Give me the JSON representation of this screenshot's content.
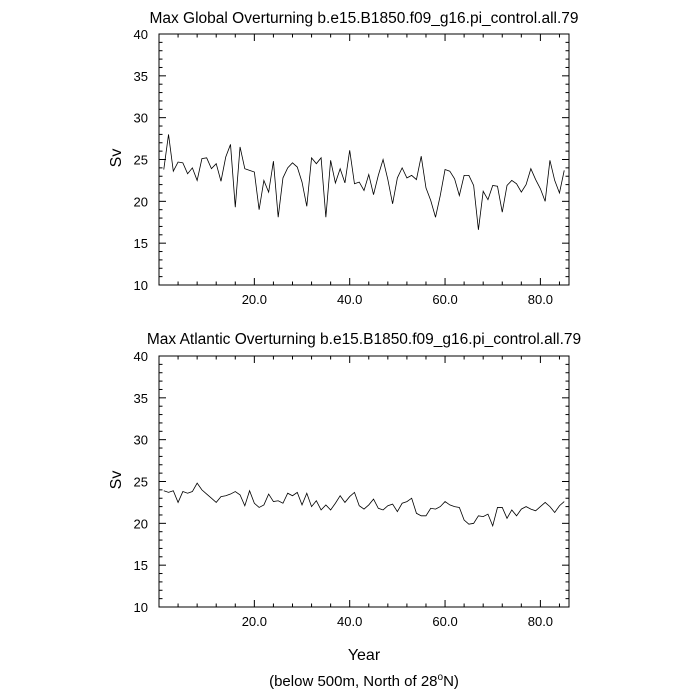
{
  "chart_data": [
    {
      "type": "line",
      "title": "Max Global Overturning b.e15.B1850.f09_g16.pi_control.all.79",
      "xlabel": "",
      "ylabel": "Sv",
      "xlim": [
        0,
        86
      ],
      "ylim": [
        10,
        40
      ],
      "xticks": [
        20,
        40,
        60,
        80
      ],
      "xtick_labels": [
        "20.0",
        "40.0",
        "60.0",
        "80.0"
      ],
      "yticks": [
        10,
        15,
        20,
        25,
        30,
        35,
        40
      ],
      "ytick_labels": [
        "10",
        "15",
        "20",
        "25",
        "30",
        "35",
        "40"
      ],
      "grid": false,
      "x": [
        1,
        2,
        3,
        4,
        5,
        6,
        7,
        8,
        9,
        10,
        11,
        12,
        13,
        14,
        15,
        16,
        17,
        18,
        19,
        20,
        21,
        22,
        23,
        24,
        25,
        26,
        27,
        28,
        29,
        30,
        31,
        32,
        33,
        34,
        35,
        36,
        37,
        38,
        39,
        40,
        41,
        42,
        43,
        44,
        45,
        46,
        47,
        48,
        49,
        50,
        51,
        52,
        53,
        54,
        55,
        56,
        57,
        58,
        59,
        60,
        61,
        62,
        63,
        64,
        65,
        66,
        67,
        68,
        69,
        70,
        71,
        72,
        73,
        74,
        75,
        76,
        77,
        78,
        79,
        80,
        81,
        82,
        83,
        84,
        85
      ],
      "y": [
        23.8,
        28.0,
        23.6,
        24.7,
        24.6,
        23.3,
        24.0,
        22.5,
        25.1,
        25.2,
        23.9,
        24.5,
        22.4,
        25.3,
        26.8,
        19.3,
        26.5,
        23.9,
        23.7,
        23.5,
        19.0,
        22.5,
        21.1,
        24.8,
        18.1,
        22.8,
        24.0,
        24.6,
        24.1,
        22.3,
        19.4,
        25.2,
        24.5,
        25.2,
        18.1,
        24.9,
        22.2,
        23.9,
        22.2,
        26.1,
        22.1,
        22.3,
        21.3,
        23.2,
        20.8,
        23.1,
        25.0,
        22.6,
        19.7,
        22.8,
        24.0,
        22.8,
        23.1,
        22.6,
        25.4,
        21.6,
        20.1,
        18.1,
        20.7,
        23.8,
        23.6,
        22.7,
        20.7,
        23.1,
        23.1,
        21.9,
        16.6,
        21.2,
        20.2,
        21.9,
        21.8,
        18.7,
        21.9,
        22.5,
        22.1,
        21.1,
        22.0,
        23.9,
        22.6,
        21.5,
        20.0,
        24.9,
        22.5,
        21.0,
        23.7
      ]
    },
    {
      "type": "line",
      "title": "Max Atlantic Overturning b.e15.B1850.f09_g16.pi_control.all.79",
      "xlabel": "Year",
      "ylabel": "Sv",
      "xlim": [
        0,
        86
      ],
      "ylim": [
        10,
        40
      ],
      "xticks": [
        20,
        40,
        60,
        80
      ],
      "xtick_labels": [
        "20.0",
        "40.0",
        "60.0",
        "80.0"
      ],
      "yticks": [
        10,
        15,
        20,
        25,
        30,
        35,
        40
      ],
      "ytick_labels": [
        "10",
        "15",
        "20",
        "25",
        "30",
        "35",
        "40"
      ],
      "grid": false,
      "x": [
        1,
        2,
        3,
        4,
        5,
        6,
        7,
        8,
        9,
        10,
        11,
        12,
        13,
        14,
        15,
        16,
        17,
        18,
        19,
        20,
        21,
        22,
        23,
        24,
        25,
        26,
        27,
        28,
        29,
        30,
        31,
        32,
        33,
        34,
        35,
        36,
        37,
        38,
        39,
        40,
        41,
        42,
        43,
        44,
        45,
        46,
        47,
        48,
        49,
        50,
        51,
        52,
        53,
        54,
        55,
        56,
        57,
        58,
        59,
        60,
        61,
        62,
        63,
        64,
        65,
        66,
        67,
        68,
        69,
        70,
        71,
        72,
        73,
        74,
        75,
        76,
        77,
        78,
        79,
        80,
        81,
        82,
        83,
        84,
        85
      ],
      "y": [
        23.9,
        23.7,
        23.9,
        22.5,
        23.8,
        23.6,
        23.8,
        24.8,
        24.0,
        23.5,
        23.0,
        22.5,
        23.2,
        23.3,
        23.5,
        23.8,
        23.4,
        22.1,
        23.9,
        22.4,
        21.9,
        22.2,
        23.5,
        22.6,
        22.7,
        22.4,
        23.6,
        23.3,
        23.7,
        22.2,
        23.6,
        22.0,
        22.7,
        21.6,
        22.2,
        21.6,
        22.4,
        23.3,
        22.5,
        23.2,
        23.7,
        22.1,
        21.7,
        22.2,
        22.9,
        21.8,
        21.6,
        22.1,
        22.3,
        21.4,
        22.4,
        22.6,
        23.0,
        21.2,
        20.9,
        20.9,
        21.8,
        21.7,
        22.0,
        22.6,
        22.2,
        22.0,
        21.9,
        20.4,
        19.9,
        20.0,
        20.9,
        20.8,
        21.1,
        19.7,
        21.9,
        21.9,
        20.6,
        21.6,
        20.9,
        21.7,
        22.0,
        21.7,
        21.5,
        22.0,
        22.5,
        22.0,
        21.3,
        22.1,
        22.6
      ]
    }
  ],
  "footnote": {
    "text_before": "(below 500m, North of 28",
    "superscript": "o",
    "text_after": "N)"
  }
}
